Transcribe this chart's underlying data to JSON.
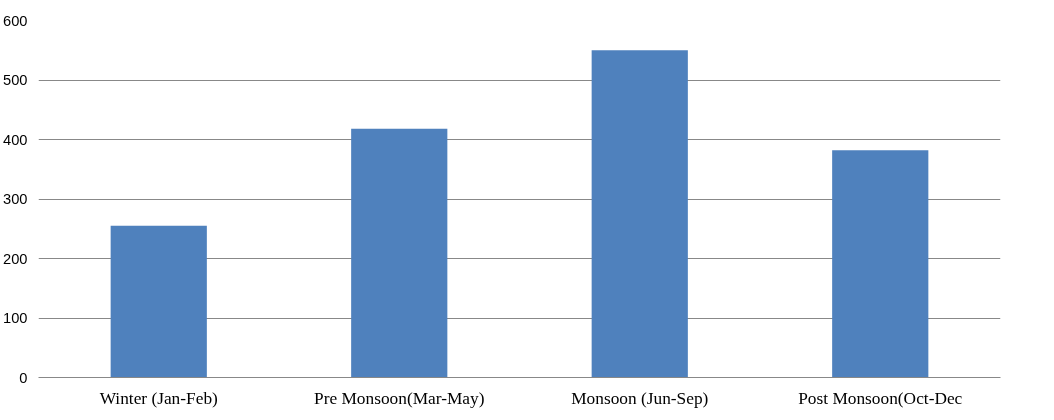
{
  "chart_data": {
    "type": "bar",
    "categories": [
      "Winter (Jan-Feb)",
      "Pre Monsoon(Mar-May)",
      "Monsoon (Jun-Sep)",
      "Post Monsoon(Oct-Dec"
    ],
    "values": [
      255,
      418,
      550,
      382
    ],
    "color": "#4f81bd",
    "ylim": [
      0,
      600
    ],
    "yticks": [
      0,
      100,
      200,
      300,
      400,
      500,
      600
    ],
    "grid": "y"
  }
}
